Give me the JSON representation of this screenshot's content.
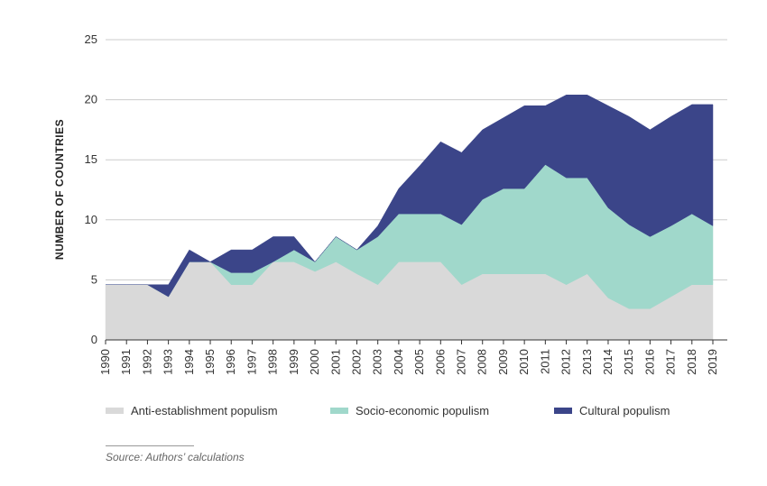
{
  "chart_data": {
    "type": "area",
    "stacked": true,
    "ylabel": "NUMBER OF COUNTRIES",
    "ylim": [
      0,
      25
    ],
    "yticks": [
      "0",
      "5",
      "10",
      "15",
      "20",
      "25"
    ],
    "x": [
      "1990",
      "1991",
      "1992",
      "1993",
      "1994",
      "1995",
      "1996",
      "1997",
      "1998",
      "1999",
      "2000",
      "2001",
      "2002",
      "2003",
      "2004",
      "2005",
      "2006",
      "2007",
      "2008",
      "2009",
      "2010",
      "2011",
      "2012",
      "2013",
      "2014",
      "2015",
      "2016",
      "2017",
      "2018",
      "2019"
    ],
    "series": [
      {
        "name": "Anti-establishment populism",
        "color": "#d9d9d9",
        "values": [
          4.6,
          4.6,
          4.6,
          3.6,
          6.5,
          6.5,
          4.6,
          4.6,
          6.5,
          6.5,
          5.7,
          6.5,
          5.5,
          4.6,
          6.5,
          6.5,
          6.5,
          4.6,
          5.5,
          5.5,
          5.5,
          5.5,
          4.6,
          5.5,
          3.5,
          2.6,
          2.6,
          3.6,
          4.6,
          4.6
        ]
      },
      {
        "name": "Socio-economic populism",
        "color": "#a0d8cb",
        "values": [
          0,
          0,
          0,
          0,
          0,
          0,
          1.0,
          1.0,
          0,
          1.0,
          0.8,
          2.1,
          2.0,
          4.0,
          4.0,
          4.0,
          4.0,
          5.0,
          6.2,
          7.1,
          7.1,
          9.1,
          8.9,
          8.0,
          7.5,
          7.0,
          6.0,
          5.9,
          5.9,
          4.9
        ]
      },
      {
        "name": "Cultural populism",
        "color": "#3b4589",
        "values": [
          0,
          0,
          0,
          1.0,
          1.0,
          0,
          1.9,
          1.9,
          2.1,
          1.1,
          0,
          0,
          0,
          0.9,
          2.1,
          4.0,
          6.0,
          6.0,
          5.8,
          5.9,
          6.9,
          4.9,
          6.9,
          6.9,
          8.5,
          9.0,
          8.9,
          9.1,
          9.1,
          10.1
        ]
      }
    ],
    "grid": true,
    "legend_position": "bottom"
  },
  "source": "Source: Authors’ calculations",
  "colors": {
    "gridline": "#cccccc",
    "axis": "#333333"
  }
}
